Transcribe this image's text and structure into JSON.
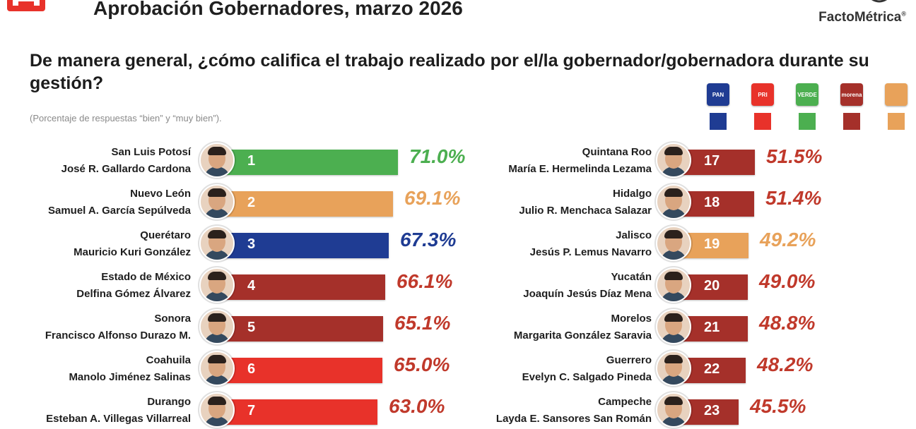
{
  "header": {
    "title": "Aprobación Gobernadores, marzo 2026",
    "brand": "FactoMétrica",
    "brand_mark": "®"
  },
  "question": "De manera general, ¿cómo califica el trabajo realizado por el/la gobernador/gobernadora durante su gestión?",
  "subtitle": "(Porcentaje de respuestas “bien” y “muy bien”).",
  "colors": {
    "PAN": "#1f3c93",
    "PRI": "#e8322a",
    "PVEM": "#4caf50",
    "MORENA": "#a5302a",
    "MC": "#e8a25a"
  },
  "legend": [
    {
      "party": "PAN",
      "icon": "pan-logo-icon",
      "label": "PAN",
      "color": "#1f3c93"
    },
    {
      "party": "PRI",
      "icon": "pri-logo-icon",
      "label": "PRI",
      "color": "#e8322a"
    },
    {
      "party": "PVEM",
      "icon": "pvem-logo-icon",
      "label": "VERDE",
      "color": "#4caf50"
    },
    {
      "party": "MORENA",
      "icon": "morena-logo-icon",
      "label": "morena",
      "color": "#a5302a"
    },
    {
      "party": "MC",
      "icon": "mc-logo-icon",
      "label": "",
      "color": "#e8a25a"
    }
  ],
  "chart_data": {
    "type": "bar",
    "orientation": "horizontal",
    "title": "Aprobación Gobernadores, marzo 2026",
    "unit": "%",
    "rows": [
      {
        "rank": 1,
        "state": "San Luis Potosí",
        "governor": "José R. Gallardo Cardona",
        "value": 71.0,
        "label": "71.0%",
        "party": "PVEM",
        "color": "#4caf50"
      },
      {
        "rank": 2,
        "state": "Nuevo León",
        "governor": "Samuel A. García Sepúlveda",
        "value": 69.1,
        "label": "69.1%",
        "party": "MC",
        "color": "#e8a25a"
      },
      {
        "rank": 3,
        "state": "Querétaro",
        "governor": "Mauricio Kuri González",
        "value": 67.3,
        "label": "67.3%",
        "party": "PAN",
        "color": "#1f3c93"
      },
      {
        "rank": 4,
        "state": "Estado de México",
        "governor": "Delfina Gómez Álvarez",
        "value": 66.1,
        "label": "66.1%",
        "party": "MORENA",
        "color": "#a5302a"
      },
      {
        "rank": 5,
        "state": "Sonora",
        "governor": "Francisco Alfonso Durazo M.",
        "value": 65.1,
        "label": "65.1%",
        "party": "MORENA",
        "color": "#a5302a"
      },
      {
        "rank": 6,
        "state": "Coahuila",
        "governor": "Manolo Jiménez Salinas",
        "value": 65.0,
        "label": "65.0%",
        "party": "PRI",
        "color": "#e8322a"
      },
      {
        "rank": 7,
        "state": "Durango",
        "governor": "Esteban A. Villegas Villarreal",
        "value": 63.0,
        "label": "63.0%",
        "party": "PRI",
        "color": "#e8322a"
      },
      {
        "rank": 17,
        "state": "Quintana Roo",
        "governor": "María E. Hermelinda Lezama",
        "value": 51.5,
        "label": "51.5%",
        "party": "MORENA",
        "color": "#a5302a"
      },
      {
        "rank": 18,
        "state": "Hidalgo",
        "governor": "Julio R. Menchaca Salazar",
        "value": 51.4,
        "label": "51.4%",
        "party": "MORENA",
        "color": "#a5302a"
      },
      {
        "rank": 19,
        "state": "Jalisco",
        "governor": "Jesús P. Lemus Navarro",
        "value": 49.2,
        "label": "49.2%",
        "party": "MC",
        "color": "#e8a25a"
      },
      {
        "rank": 20,
        "state": "Yucatán",
        "governor": "Joaquín Jesús Díaz Mena",
        "value": 49.0,
        "label": "49.0%",
        "party": "MORENA",
        "color": "#a5302a"
      },
      {
        "rank": 21,
        "state": "Morelos",
        "governor": "Margarita González Saravia",
        "value": 48.8,
        "label": "48.8%",
        "party": "MORENA",
        "color": "#a5302a"
      },
      {
        "rank": 22,
        "state": "Guerrero",
        "governor": "Evelyn C. Salgado Pineda",
        "value": 48.2,
        "label": "48.2%",
        "party": "MORENA",
        "color": "#a5302a"
      },
      {
        "rank": 23,
        "state": "Campeche",
        "governor": "Layda E. Sansores San Román",
        "value": 45.5,
        "label": "45.5%",
        "party": "MORENA",
        "color": "#a5302a"
      }
    ],
    "grid": false,
    "legend_position": "top-right"
  }
}
